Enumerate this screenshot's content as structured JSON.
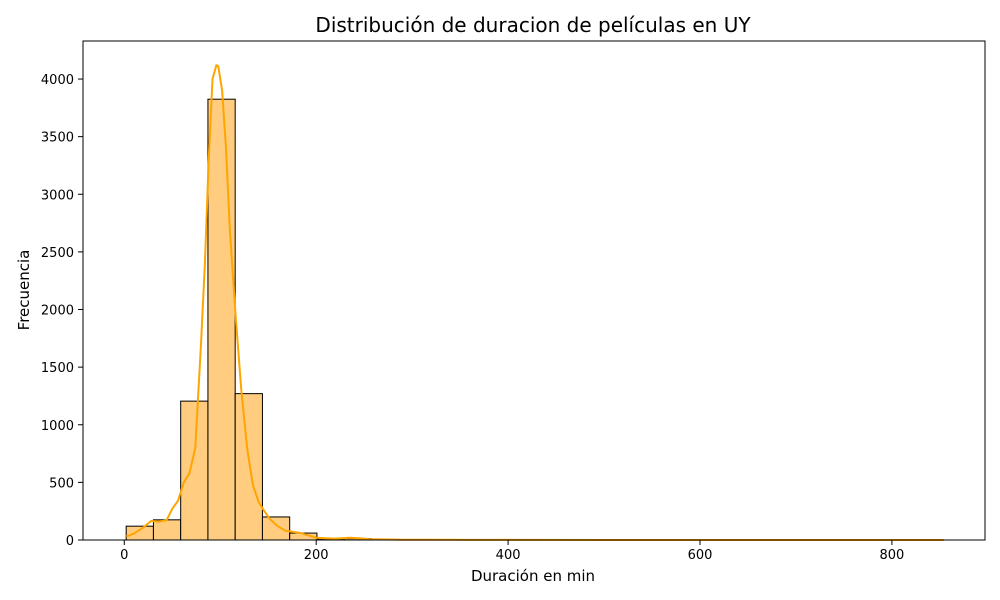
{
  "chart_data": {
    "type": "bar",
    "subtype": "histogram_with_kde",
    "title": "Distribución de duracion de películas en UY",
    "xlabel": "Duración en min",
    "ylabel": "Frecuencia",
    "xlim": [
      -43,
      897
    ],
    "ylim": [
      0,
      4330
    ],
    "xticks": [
      0,
      200,
      400,
      600,
      800
    ],
    "yticks": [
      0,
      500,
      1000,
      1500,
      2000,
      2500,
      3000,
      3500,
      4000
    ],
    "grid": false,
    "bar_color": "#ffcc80",
    "bar_edge_color": "#000000",
    "kde_color": "#ffa500",
    "bins": [
      {
        "x0": 2.0,
        "x1": 30.4,
        "count": 120
      },
      {
        "x0": 30.4,
        "x1": 58.8,
        "count": 175
      },
      {
        "x0": 58.8,
        "x1": 87.2,
        "count": 1205
      },
      {
        "x0": 87.2,
        "x1": 115.6,
        "count": 3825
      },
      {
        "x0": 115.6,
        "x1": 144.0,
        "count": 1270
      },
      {
        "x0": 144.0,
        "x1": 172.4,
        "count": 200
      },
      {
        "x0": 172.4,
        "x1": 200.8,
        "count": 60
      },
      {
        "x0": 200.8,
        "x1": 229.2,
        "count": 10
      },
      {
        "x0": 229.2,
        "x1": 257.6,
        "count": 12
      },
      {
        "x0": 257.6,
        "x1": 286.0,
        "count": 5
      },
      {
        "x0": 286.0,
        "x1": 314.4,
        "count": 3
      },
      {
        "x0": 314.4,
        "x1": 342.8,
        "count": 2
      },
      {
        "x0": 342.8,
        "x1": 371.2,
        "count": 1
      },
      {
        "x0": 371.2,
        "x1": 399.6,
        "count": 1
      },
      {
        "x0": 399.6,
        "x1": 428.0,
        "count": 1
      },
      {
        "x0": 428.0,
        "x1": 456.4,
        "count": 0
      },
      {
        "x0": 456.4,
        "x1": 484.8,
        "count": 0
      },
      {
        "x0": 484.8,
        "x1": 513.2,
        "count": 0
      },
      {
        "x0": 513.2,
        "x1": 541.6,
        "count": 0
      },
      {
        "x0": 541.6,
        "x1": 570.0,
        "count": 0
      },
      {
        "x0": 570.0,
        "x1": 598.4,
        "count": 0
      },
      {
        "x0": 598.4,
        "x1": 626.8,
        "count": 0
      },
      {
        "x0": 626.8,
        "x1": 655.2,
        "count": 0
      },
      {
        "x0": 655.2,
        "x1": 683.6,
        "count": 0
      },
      {
        "x0": 683.6,
        "x1": 712.0,
        "count": 0
      },
      {
        "x0": 712.0,
        "x1": 740.4,
        "count": 0
      },
      {
        "x0": 740.4,
        "x1": 768.8,
        "count": 0
      },
      {
        "x0": 768.8,
        "x1": 797.2,
        "count": 0
      },
      {
        "x0": 797.2,
        "x1": 825.6,
        "count": 0
      },
      {
        "x0": 825.6,
        "x1": 854.0,
        "count": 1
      }
    ],
    "kde": {
      "x": [
        2,
        10,
        20,
        28,
        36,
        44,
        50,
        56,
        62,
        68,
        74,
        80,
        84,
        88,
        92,
        96,
        98,
        102,
        106,
        110,
        116,
        122,
        128,
        134,
        140,
        146,
        152,
        160,
        168,
        176,
        184,
        192,
        200,
        210,
        220,
        235,
        245,
        255,
        270,
        290,
        320,
        360,
        400,
        500,
        600,
        700,
        800,
        854
      ],
      "y": [
        30,
        55,
        110,
        165,
        160,
        170,
        270,
        340,
        500,
        580,
        800,
        1700,
        2400,
        3300,
        4000,
        4120,
        4110,
        3900,
        3400,
        2700,
        1950,
        1300,
        800,
        480,
        330,
        250,
        180,
        120,
        80,
        70,
        60,
        40,
        20,
        15,
        12,
        20,
        15,
        8,
        5,
        3,
        2,
        1,
        1,
        0,
        0,
        0,
        0,
        0
      ]
    }
  }
}
